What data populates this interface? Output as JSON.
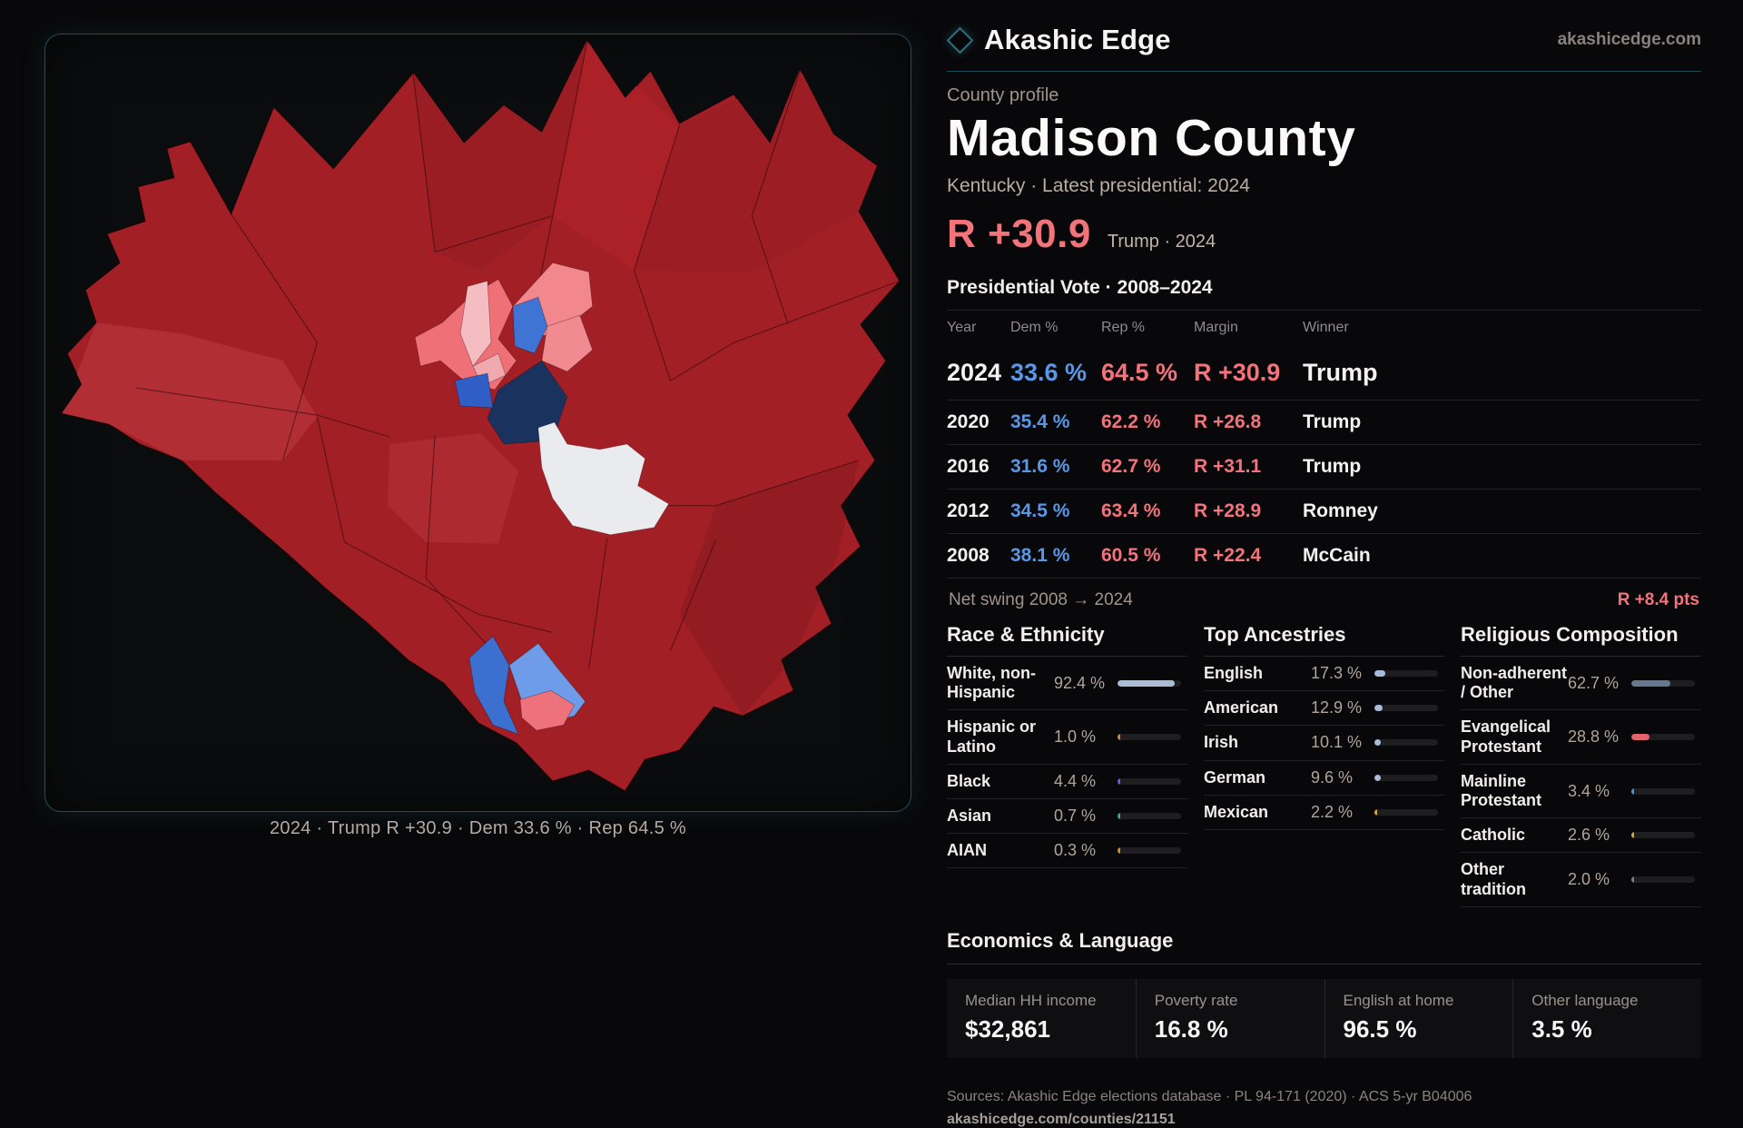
{
  "brand": {
    "name": "Akashic Edge",
    "domain": "akashicedge.com",
    "logo_icon": "diamond-icon",
    "accent_teal": "#2f6e7e"
  },
  "profile": {
    "kicker": "County profile",
    "title": "Madison County",
    "subtitle": "Kentucky · Latest presidential: 2024",
    "headline_margin": "R +30.9",
    "headline_context": "Trump · 2024",
    "table_title": "Presidential Vote · 2008–2024"
  },
  "colors": {
    "republican": "#f3737b",
    "democrat": "#5a97e6",
    "map_red": "#a21f26",
    "map_navy": "#19335e",
    "map_white_precinct": "#e9ebef"
  },
  "results_table": {
    "columns": [
      "Year",
      "Dem %",
      "Rep %",
      "Margin",
      "Winner"
    ],
    "rows": [
      {
        "year": "2024",
        "dem": "33.6 %",
        "rep": "64.5 %",
        "margin": "R +30.9",
        "winner": "Trump"
      },
      {
        "year": "2020",
        "dem": "35.4 %",
        "rep": "62.2 %",
        "margin": "R +26.8",
        "winner": "Trump"
      },
      {
        "year": "2016",
        "dem": "31.6 %",
        "rep": "62.7 %",
        "margin": "R +31.1",
        "winner": "Trump"
      },
      {
        "year": "2012",
        "dem": "34.5 %",
        "rep": "63.4 %",
        "margin": "R +28.9",
        "winner": "Romney"
      },
      {
        "year": "2008",
        "dem": "38.1 %",
        "rep": "60.5 %",
        "margin": "R +22.4",
        "winner": "McCain"
      }
    ],
    "net_swing_label": "Net swing 2008 → 2024",
    "net_swing_value": "R +8.4 pts"
  },
  "race": {
    "heading": "Race & Ethnicity",
    "rows": [
      {
        "label": "White, non-Hispanic",
        "value": "92.4 %",
        "pct": 92.4,
        "color": "#a9bdd9"
      },
      {
        "label": "Hispanic or Latino",
        "value": "1.0 %",
        "pct": 1.0,
        "color": "#cf8b3a"
      },
      {
        "label": "Black",
        "value": "4.4 %",
        "pct": 4.4,
        "color": "#6f5bd8"
      },
      {
        "label": "Asian",
        "value": "0.7 %",
        "pct": 0.7,
        "color": "#2fae92"
      },
      {
        "label": "AIAN",
        "value": "0.3 %",
        "pct": 0.3,
        "color": "#cf8b3a"
      }
    ]
  },
  "ancestries": {
    "heading": "Top Ancestries",
    "rows": [
      {
        "label": "English",
        "value": "17.3 %",
        "pct": 17.3,
        "color": "#a9bdd9"
      },
      {
        "label": "American",
        "value": "12.9 %",
        "pct": 12.9,
        "color": "#a9bdd9"
      },
      {
        "label": "Irish",
        "value": "10.1 %",
        "pct": 10.1,
        "color": "#a9bdd9"
      },
      {
        "label": "German",
        "value": "9.6 %",
        "pct": 9.6,
        "color": "#a9bdd9"
      },
      {
        "label": "Mexican",
        "value": "2.2 %",
        "pct": 2.2,
        "color": "#d9a03f"
      }
    ]
  },
  "religion": {
    "heading": "Religious Composition",
    "rows": [
      {
        "label": "Non-adherent / Other",
        "value": "62.7 %",
        "pct": 62.7,
        "color": "#64788f"
      },
      {
        "label": "Evangelical Protestant",
        "value": "28.8 %",
        "pct": 28.8,
        "color": "#e0646c"
      },
      {
        "label": "Mainline Protestant",
        "value": "3.4 %",
        "pct": 3.4,
        "color": "#4a8fe0"
      },
      {
        "label": "Catholic",
        "value": "2.6 %",
        "pct": 2.6,
        "color": "#d9a43c"
      },
      {
        "label": "Other tradition",
        "value": "2.0 %",
        "pct": 2.0,
        "color": "#7d7d82"
      }
    ]
  },
  "economics": {
    "heading": "Economics & Language",
    "stats": [
      {
        "label": "Median HH income",
        "value": "$32,861"
      },
      {
        "label": "Poverty rate",
        "value": "16.8 %"
      },
      {
        "label": "English at home",
        "value": "96.5 %"
      },
      {
        "label": "Other language",
        "value": "3.5 %"
      }
    ]
  },
  "map": {
    "caption": "2024 · Trump R +30.9 · Dem 33.6 % · Rep 64.5 %"
  },
  "footer": {
    "sources": "Sources: Akashic Edge elections database · PL 94-171 (2020) · ACS 5-yr B04006",
    "permalink": "akashicedge.com/counties/21151"
  }
}
